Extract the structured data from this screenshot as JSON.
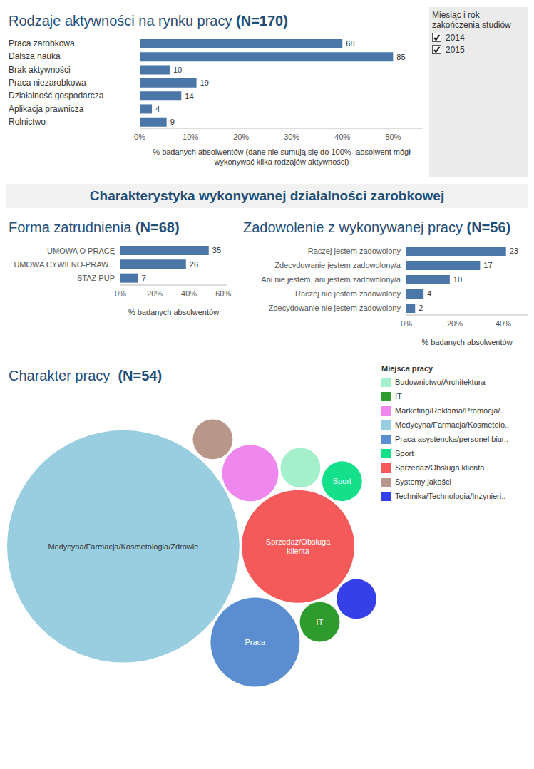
{
  "filter": {
    "title": "Miesiąc i rok zakończenia studiów",
    "options": [
      "2014",
      "2015"
    ]
  },
  "section_title": "Charakterystyka wykonywanej działalności zarobkowej",
  "chart_data": [
    {
      "type": "bar",
      "orientation": "horizontal",
      "title": "Rodzaje aktywności na rynku pracy (N=170)",
      "categories": [
        "Praca zarobkowa",
        "Dalsza nauka",
        "Brak aktywności",
        "Praca niezarobkowa",
        "Działalność gospodarcza",
        "Aplikacja prawnicza",
        "Rolnictwo"
      ],
      "values": [
        40,
        50,
        5.9,
        11.2,
        8.2,
        2.4,
        5.3
      ],
      "counts": [
        68,
        85,
        10,
        19,
        14,
        4,
        9
      ],
      "color": "#4a76a8",
      "xlim": [
        0,
        56
      ],
      "xticks": [
        {
          "value": 0,
          "label": "0%"
        },
        {
          "value": 10,
          "label": "10%"
        },
        {
          "value": 20,
          "label": "20%"
        },
        {
          "value": 30,
          "label": "30%"
        },
        {
          "value": 40,
          "label": "40%"
        },
        {
          "value": 50,
          "label": "50%"
        }
      ],
      "xlabel": "% badanych absolwentów (dane nie sumują się do 100%- absolwent mógł wykonywać kilka rodzajów aktywności)"
    },
    {
      "type": "bar",
      "orientation": "horizontal",
      "title": "Forma zatrudnienia (N=68)",
      "categories": [
        "UMOWA O PRACĘ",
        "UMOWA CYWILNO-PRAW...",
        "STAŻ PUP"
      ],
      "values": [
        51.5,
        38.2,
        10.3
      ],
      "counts": [
        35,
        26,
        7
      ],
      "color": "#4a76a8",
      "xlim": [
        0,
        62
      ],
      "xticks": [
        {
          "value": 0,
          "label": "0%"
        },
        {
          "value": 20,
          "label": "20%"
        },
        {
          "value": 40,
          "label": "40%"
        },
        {
          "value": 60,
          "label": "60%"
        }
      ],
      "xlabel": "% badanych absolwentów"
    },
    {
      "type": "bar",
      "orientation": "horizontal",
      "title": "Zadowolenie z wykonywanej pracy (N=56)",
      "categories": [
        "Raczej jestem zadowolony",
        "Zdecydowanie jestem zadowolony/a",
        "Ani nie jestem, ani jestem zadowolony/a",
        "Raczej nie jestem zadowolony",
        "Zdecydowanie nie jestem zadowolony"
      ],
      "values": [
        41.1,
        30.4,
        17.9,
        7.1,
        3.6
      ],
      "counts": [
        23,
        17,
        10,
        4,
        2
      ],
      "color": "#4a76a8",
      "xlim": [
        0,
        50
      ],
      "xticks": [
        {
          "value": 0,
          "label": "0%"
        },
        {
          "value": 20,
          "label": "20%"
        },
        {
          "value": 40,
          "label": "40%"
        }
      ],
      "xlabel": "% badanych absolwentów"
    },
    {
      "type": "bubble",
      "title": "Charakter pracy  (N=54)",
      "legend_title": "Miejsca pracy",
      "legend": "right",
      "tick_labels": false,
      "categories": [
        "Budownictwo/Architektura",
        "IT",
        "Marketing/Reklama/Promocja/..",
        "Medycyna/Farmacja/Kosmetolo..",
        "Praca asystencka/personel biur..",
        "Sport",
        "Sprzedaż/Obsługa klienta",
        "Systemy jakości",
        "Technika/Technologia/Inżynieri.."
      ],
      "sizes": [
        1,
        1,
        2,
        34,
        5,
        1,
        8,
        1,
        1
      ],
      "bubble_labels": [
        null,
        "IT",
        null,
        "Medycyna/Farmacja/Kosmetologia/Zdrowie",
        "Praca",
        "Sport",
        "Sprzedaż/Obsługa klienta",
        null,
        null
      ],
      "colors": [
        "#a3f0cb",
        "#2e9b2e",
        "#ee88ee",
        "#99cde0",
        "#5a8ed0",
        "#14e08c",
        "#f55a5a",
        "#b8968a",
        "#3640e8"
      ]
    }
  ]
}
